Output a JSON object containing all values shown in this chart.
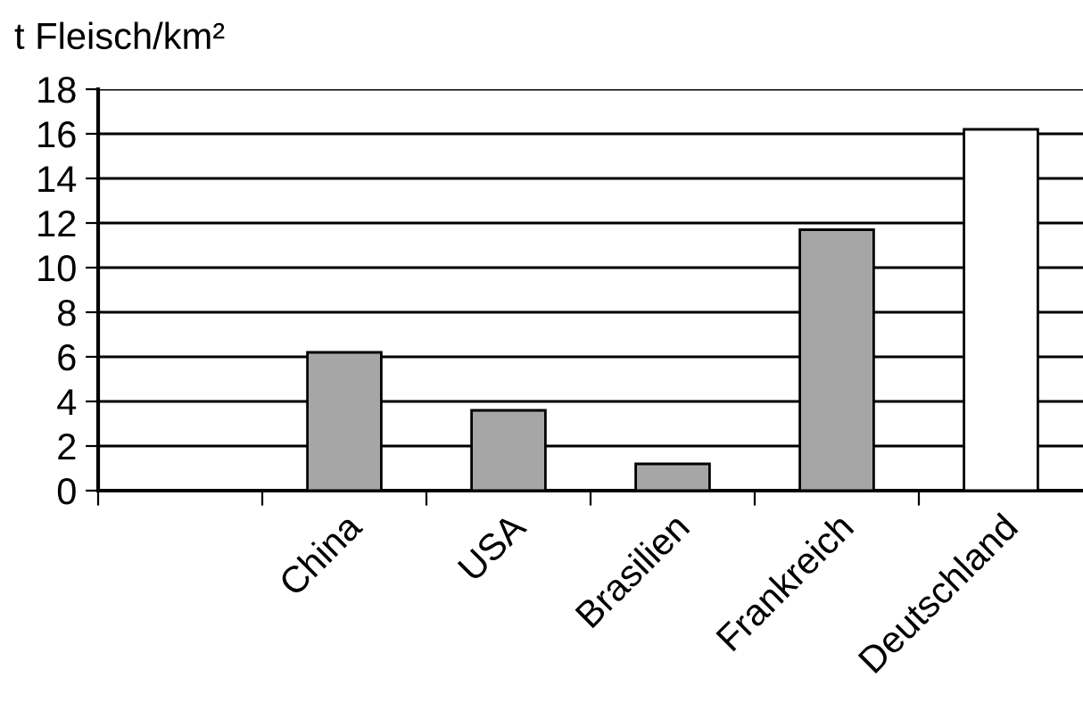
{
  "chart_data": {
    "type": "bar",
    "ylabel": "t Fleisch/km²",
    "categories": [
      null,
      "China",
      "USA",
      "Brasilien",
      "Frankreich",
      "Deutschland"
    ],
    "values": [
      null,
      6.2,
      3.6,
      1.2,
      11.7,
      16.2
    ],
    "colors": [
      "#a6a6a6",
      "#a6a6a6",
      "#a6a6a6",
      "#a6a6a6",
      "#a6a6a6",
      "#ffffff"
    ],
    "ylim": [
      0,
      18
    ],
    "yticks": [
      0,
      2,
      4,
      6,
      8,
      10,
      12,
      14,
      16,
      18
    ],
    "grid": "y"
  }
}
